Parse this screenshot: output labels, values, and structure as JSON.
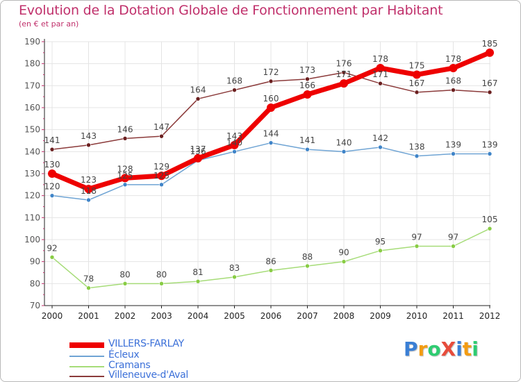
{
  "title": "Evolution de la Dotation Globale de Fonctionnement par Habitant",
  "subtitle": "(en € et par an)",
  "logo": {
    "text": "ProXiti",
    "letters": [
      "P",
      "r",
      "o",
      "X",
      "i",
      "t",
      "i"
    ],
    "colors": [
      "#3a7fd5",
      "#f39c12",
      "#2ecc71",
      "#e74c3c",
      "#3a7fd5",
      "#f39c12",
      "#2ecc71"
    ]
  },
  "chart_data": {
    "type": "line",
    "title": "Evolution de la Dotation Globale de Fonctionnement par Habitant",
    "subtitle": "(en € et par an)",
    "xlabel": "",
    "ylabel": "",
    "ylim": [
      70,
      190
    ],
    "yticks": [
      70,
      80,
      90,
      100,
      110,
      120,
      130,
      140,
      150,
      160,
      170,
      180,
      190
    ],
    "grid": true,
    "legend_position": "bottom-left",
    "categories": [
      "2000",
      "2001",
      "2002",
      "2003",
      "2004",
      "2005",
      "2006",
      "2007",
      "2008",
      "2009",
      "2010",
      "2011",
      "2012"
    ],
    "series": [
      {
        "name": "VILLERS-FARLAY",
        "color": "#ee0000",
        "marker_color": "#ee0000",
        "values": [
          130,
          123,
          128,
          129,
          137,
          143,
          160,
          166,
          171,
          178,
          175,
          178,
          185
        ]
      },
      {
        "name": "Écleux",
        "color": "#6fa4d4",
        "marker_color": "#3f84c8",
        "values": [
          120,
          118,
          125,
          125,
          136,
          140,
          144,
          141,
          140,
          142,
          138,
          139,
          139
        ]
      },
      {
        "name": "Cramans",
        "color": "#a6dc78",
        "marker_color": "#88cc44",
        "values": [
          92,
          78,
          80,
          80,
          81,
          83,
          86,
          88,
          90,
          95,
          97,
          97,
          105
        ]
      },
      {
        "name": "Villeneuve-d'Aval",
        "color": "#8b3a3a",
        "marker_color": "#6b1f1f",
        "values": [
          141,
          143,
          146,
          147,
          164,
          168,
          172,
          173,
          176,
          171,
          167,
          168,
          167
        ]
      }
    ]
  }
}
